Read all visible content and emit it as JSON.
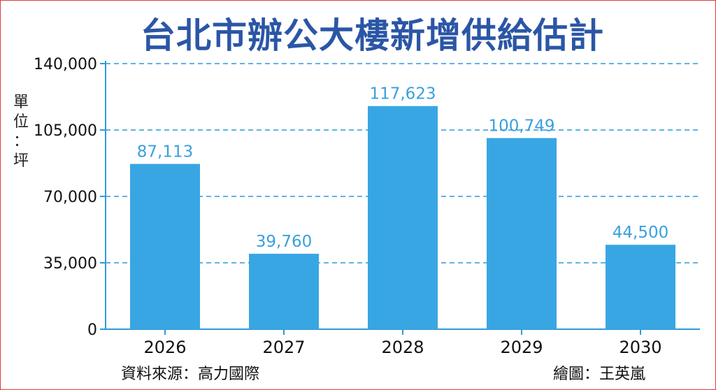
{
  "title": "台北市辦公大樓新增供給估計",
  "unit_label": [
    "單",
    "位",
    "：",
    "坪"
  ],
  "source": "資料來源：高力國際",
  "credit": "繪圖：王英嵐",
  "colors": {
    "bar": "#38a6e3",
    "label": "#3aa0dc",
    "grid": "#2f9ad8",
    "axis": "#2f9ad8",
    "title": "#2b56a6"
  },
  "chart_data": {
    "type": "bar",
    "title": "台北市辦公大樓新增供給估計",
    "ylabel": "單位：坪",
    "xlabel": "",
    "categories": [
      "2026",
      "2027",
      "2028",
      "2029",
      "2030"
    ],
    "values": [
      87113,
      39760,
      117623,
      100749,
      44500
    ],
    "value_labels": [
      "87,113",
      "39,760",
      "117,623",
      "100,749",
      "44,500"
    ],
    "ylim": [
      0,
      140000
    ],
    "yticks": [
      0,
      35000,
      70000,
      105000,
      140000
    ],
    "ytick_labels": [
      "0",
      "35,000",
      "70,000",
      "105,000",
      "140,000"
    ],
    "grid": true,
    "grid_style": "dashed"
  }
}
